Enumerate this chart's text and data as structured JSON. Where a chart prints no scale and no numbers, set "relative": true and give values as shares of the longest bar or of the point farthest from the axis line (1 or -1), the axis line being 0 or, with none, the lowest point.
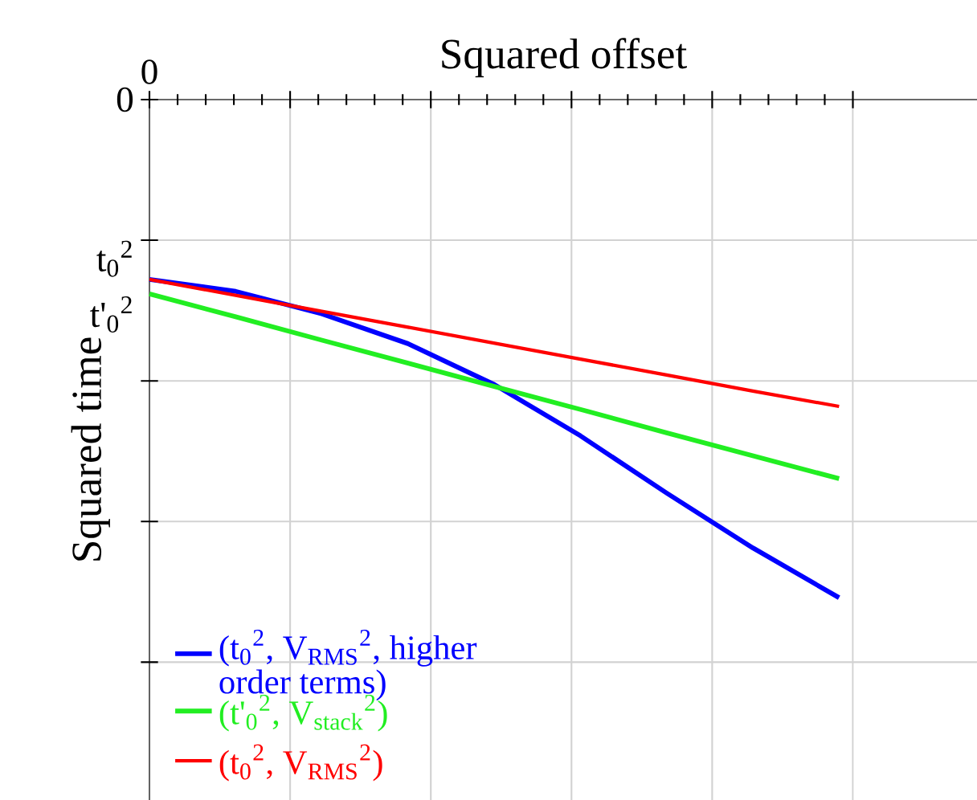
{
  "chart_data": {
    "type": "line",
    "xlabel": "Squared offset",
    "ylabel": "Squared time",
    "relative": true,
    "categories": [
      null,
      null,
      null,
      null,
      null,
      null,
      null,
      null,
      null
    ],
    "grid": true,
    "legend": "bottom left",
    "marker": "none",
    "line_style": "solid",
    "annotations": [
      "0",
      "0",
      "t$_{0}$$^{2}$",
      "t'$_{0}$$^{2}$"
    ],
    "series": [
      {
        "name": "(t$_{0}$$^{2}$, V$_{RMS}$$^{2}$, higher order terms)",
        "color": "#0000ff",
        "values": [
          -0.361,
          -0.385,
          -0.43,
          -0.49,
          -0.572,
          -0.675,
          -0.79,
          -0.9,
          -1.0
        ]
      },
      {
        "name": "(t'$_{0}$$^{2}$, V$_{stack}$$^{2}$)",
        "color": "#22ee22",
        "values": [
          -0.39,
          -0.436,
          -0.483,
          -0.529,
          -0.576,
          -0.622,
          -0.669,
          -0.715,
          -0.761
        ]
      },
      {
        "name": "(t$_{0}$$^{2}$, V$_{RMS}$$^{2}$)",
        "color": "#ff0000",
        "values": [
          -0.361,
          -0.393,
          -0.425,
          -0.457,
          -0.489,
          -0.521,
          -0.553,
          -0.585,
          -0.616
        ]
      }
    ]
  }
}
